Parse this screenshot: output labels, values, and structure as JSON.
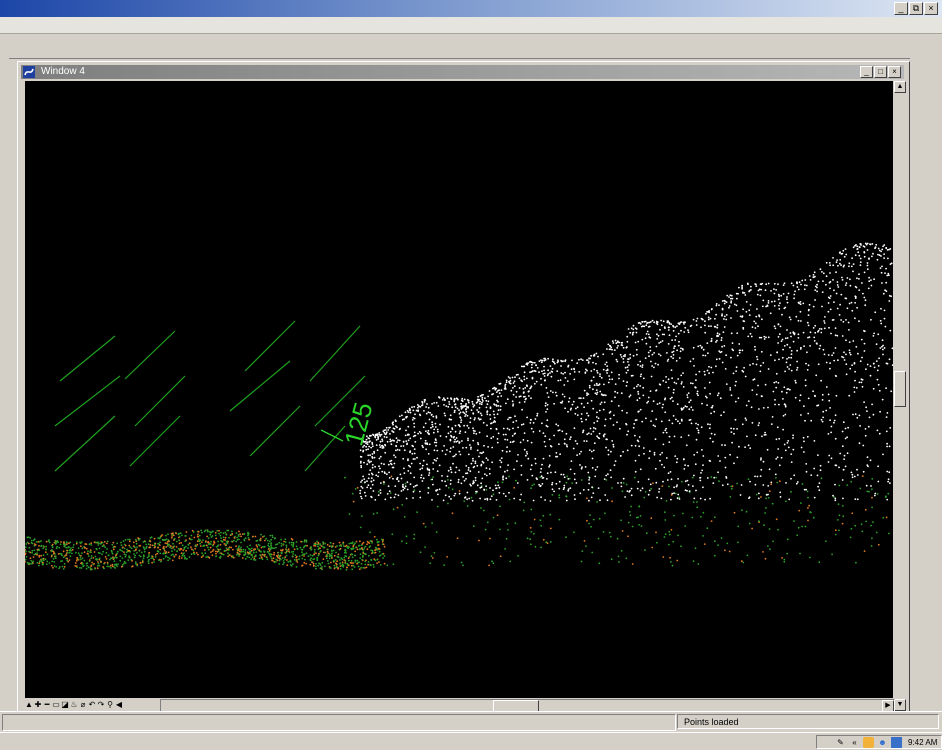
{
  "window": {
    "title": "Window 4",
    "icon": "microstation-icon",
    "controls": {
      "minimize": "_",
      "maximize": "□",
      "close": "×"
    }
  },
  "app_controls": {
    "minimize": "_",
    "restore": "⧉",
    "close": "×"
  },
  "view": {
    "annotation": "125",
    "colors": {
      "background": "#000000",
      "ground": "#2aa02a",
      "vegetation": "#ffffff",
      "breaklines": "#e07a20",
      "contours": "#1ea01e"
    }
  },
  "view_tools": [
    "▲",
    "✚",
    "━",
    "▭",
    "◪",
    "♨",
    "⌀",
    "↶",
    "↷",
    "⚲",
    "◀"
  ],
  "status": {
    "message": "Points loaded"
  },
  "tray": {
    "clock": "9:42 AM",
    "icons": [
      "pen-icon",
      "chevron-icon",
      "shield-icon",
      "people-icon",
      "monitor-icon"
    ]
  }
}
